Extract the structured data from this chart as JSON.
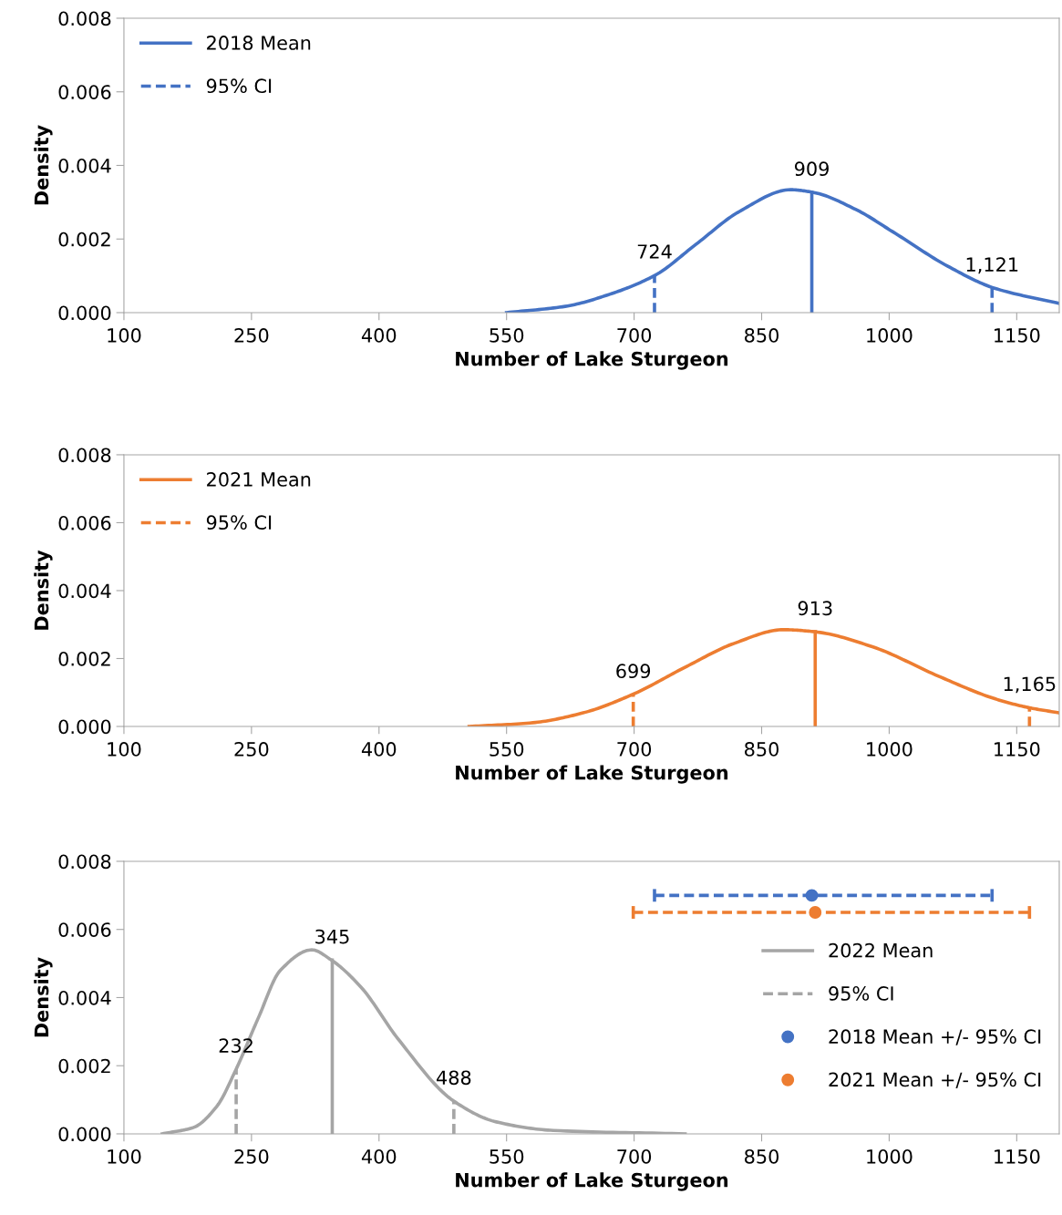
{
  "chart_data": [
    {
      "type": "line",
      "xlabel": "Number of Lake Sturgeon",
      "ylabel": "Density",
      "xlim": [
        100,
        1200
      ],
      "xticks": [
        100,
        250,
        400,
        550,
        700,
        850,
        1000,
        1150
      ],
      "ylim": [
        0,
        0.008
      ],
      "yticks": [
        {
          "value": 0,
          "label": "0.000"
        },
        {
          "value": 0.002,
          "label": "0.002"
        },
        {
          "value": 0.004,
          "label": "0.004"
        },
        {
          "value": 0.006,
          "label": "0.006"
        },
        {
          "value": 0.008,
          "label": "0.008"
        }
      ],
      "grid": false,
      "legend": "top left",
      "series": [
        {
          "color": "#4472c4",
          "x": [
            550,
            619,
            674,
            725,
            773,
            824,
            884,
            910,
            961,
            1004,
            1069,
            1123,
            1200
          ],
          "values": [
            0,
            0.00017,
            0.00052,
            0.00102,
            0.00186,
            0.00275,
            0.00334,
            0.00327,
            0.0028,
            0.0022,
            0.00126,
            0.00067,
            0.00025
          ]
        },
        {
          "name": "2018 Mean",
          "color": "#4472c4",
          "line_style": "solid",
          "x": [
            909,
            909
          ],
          "values": [
            0,
            0.00327
          ]
        },
        {
          "name": "95% CI",
          "color": "#4472c4",
          "line_style": "dashed",
          "x": [
            724,
            724,
            null,
            1121,
            1121
          ],
          "values": [
            0,
            0.00102,
            null,
            0,
            0.00067
          ]
        }
      ],
      "annotations": [
        {
          "text": "909",
          "x": 909,
          "y": 0.00327
        },
        {
          "text": "724",
          "x": 724,
          "y": 0.00102
        },
        {
          "text": "1,121",
          "x": 1121,
          "y": 0.00067
        }
      ]
    },
    {
      "type": "line",
      "xlabel": "Number of Lake Sturgeon",
      "ylabel": "Density",
      "xlim": [
        100,
        1200
      ],
      "xticks": [
        100,
        250,
        400,
        550,
        700,
        850,
        1000,
        1150
      ],
      "ylim": [
        0,
        0.008
      ],
      "yticks": [
        {
          "value": 0,
          "label": "0.000"
        },
        {
          "value": 0.002,
          "label": "0.002"
        },
        {
          "value": 0.004,
          "label": "0.004"
        },
        {
          "value": 0.006,
          "label": "0.006"
        },
        {
          "value": 0.008,
          "label": "0.008"
        }
      ],
      "grid": false,
      "legend": "top left",
      "series": [
        {
          "color": "#ed7d31",
          "x": [
            506,
            581,
            640,
            698,
            762,
            817,
            876,
            912,
            981,
            1058,
            1125,
            1163,
            1200
          ],
          "values": [
            0,
            0.00011,
            0.0004,
            0.00094,
            0.00177,
            0.00244,
            0.00285,
            0.00279,
            0.00234,
            0.00148,
            0.00081,
            0.00056,
            0.0004
          ]
        },
        {
          "name": "2021 Mean",
          "color": "#ed7d31",
          "line_style": "solid",
          "x": [
            913,
            913
          ],
          "values": [
            0,
            0.00279
          ]
        },
        {
          "name": "95% CI",
          "color": "#ed7d31",
          "line_style": "dashed",
          "x": [
            699,
            699,
            null,
            1165,
            1165
          ],
          "values": [
            0,
            0.00094,
            null,
            0,
            0.00056
          ]
        }
      ],
      "annotations": [
        {
          "text": "913",
          "x": 913,
          "y": 0.00279
        },
        {
          "text": "699",
          "x": 699,
          "y": 0.00094
        },
        {
          "text": "1,165",
          "x": 1165,
          "y": 0.00056
        }
      ]
    },
    {
      "type": "line",
      "xlabel": "Number of Lake Sturgeon",
      "ylabel": "Density",
      "xlim": [
        100,
        1200
      ],
      "xticks": [
        100,
        250,
        400,
        550,
        700,
        850,
        1000,
        1150
      ],
      "ylim": [
        0,
        0.008
      ],
      "yticks": [
        {
          "value": 0,
          "label": "0.000"
        },
        {
          "value": 0.002,
          "label": "0.002"
        },
        {
          "value": 0.004,
          "label": "0.004"
        },
        {
          "value": 0.006,
          "label": "0.006"
        },
        {
          "value": 0.008,
          "label": "0.008"
        }
      ],
      "grid": false,
      "legend": "right",
      "series": [
        {
          "color": "#a5a5a5",
          "x": [
            145,
            182,
            209,
            232,
            258,
            284,
            321,
            344,
            379,
            422,
            488,
            538,
            605,
            760
          ],
          "values": [
            0,
            0.00019,
            0.0008,
            0.0019,
            0.0034,
            0.0048,
            0.0054,
            0.0051,
            0.0043,
            0.0028,
            0.00096,
            0.00035,
            0.0001,
            0
          ]
        },
        {
          "name": "2022 Mean",
          "color": "#a5a5a5",
          "line_style": "solid",
          "x": [
            345,
            345
          ],
          "values": [
            0,
            0.0051
          ]
        },
        {
          "name": "95% CI",
          "color": "#a5a5a5",
          "line_style": "dashed",
          "x": [
            232,
            232,
            null,
            488,
            488
          ],
          "values": [
            0,
            0.0019,
            null,
            0,
            0.00096
          ]
        },
        {
          "name": "2018 Mean +/- 95% CI",
          "type": "scatter",
          "marker": "circle",
          "line_style": "dashed",
          "color": "#4472c4",
          "x": [
            909
          ],
          "values": [
            0.007
          ],
          "xerrors": [
            [
              724,
              1121
            ]
          ]
        },
        {
          "name": "2021 Mean +/- 95% CI",
          "type": "scatter",
          "marker": "circle",
          "line_style": "dashed",
          "color": "#ed7d31",
          "x": [
            913
          ],
          "values": [
            0.0065
          ],
          "xerrors": [
            [
              699,
              1165
            ]
          ]
        }
      ],
      "annotations": [
        {
          "text": "345",
          "x": 345,
          "y": 0.0051
        },
        {
          "text": "232",
          "x": 232,
          "y": 0.0019
        },
        {
          "text": "488",
          "x": 488,
          "y": 0.00096
        }
      ]
    }
  ]
}
